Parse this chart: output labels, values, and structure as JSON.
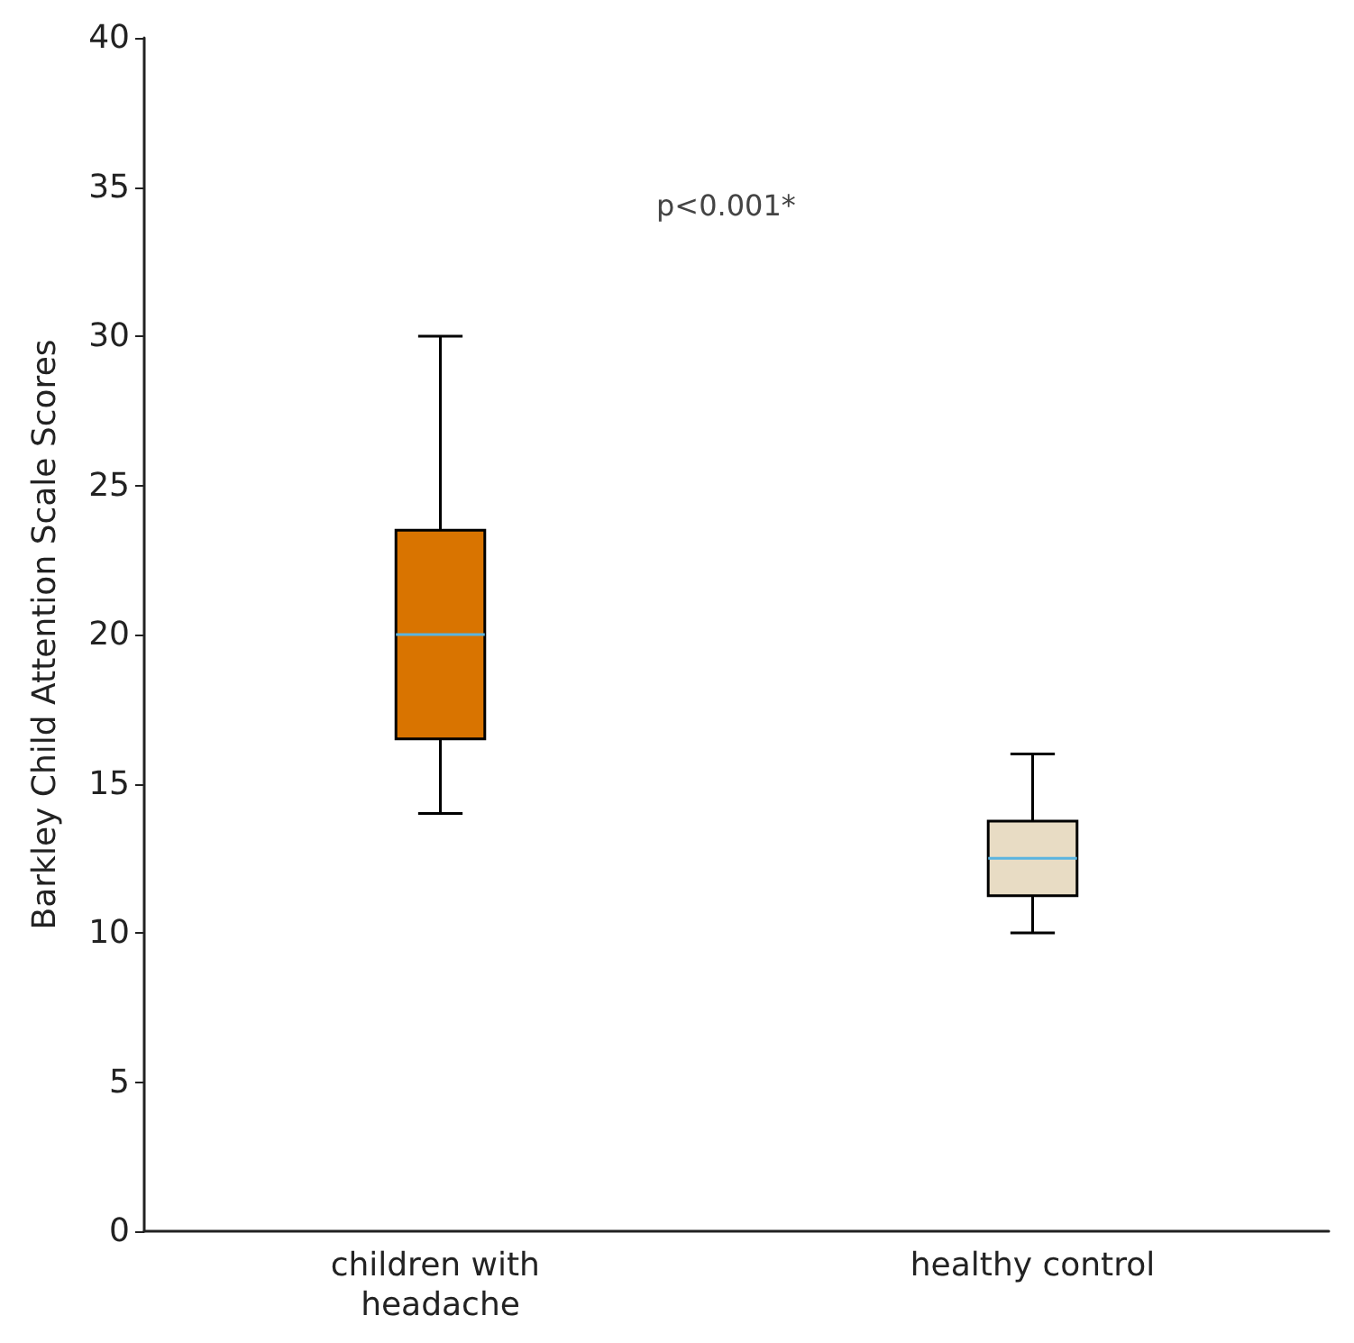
{
  "chart_data": {
    "type": "box",
    "ylabel": "Barkley Child Attention Scale Scores",
    "categories": [
      "children with headache",
      "healthy control"
    ],
    "boxes": [
      {
        "low": 14,
        "q1": 16.5,
        "median": 20,
        "q3": 23.5,
        "high": 30
      },
      {
        "low": 10,
        "q1": 11.25,
        "median": 12.5,
        "q3": 13.75,
        "high": 16
      }
    ],
    "colors": [
      "#d97400",
      "#e8dcc4"
    ],
    "ylim": [
      0,
      40
    ],
    "yticks": [
      0,
      5,
      10,
      15,
      20,
      25,
      30,
      35,
      40
    ],
    "grid": false,
    "annotations": [
      "p<0.001*"
    ]
  }
}
